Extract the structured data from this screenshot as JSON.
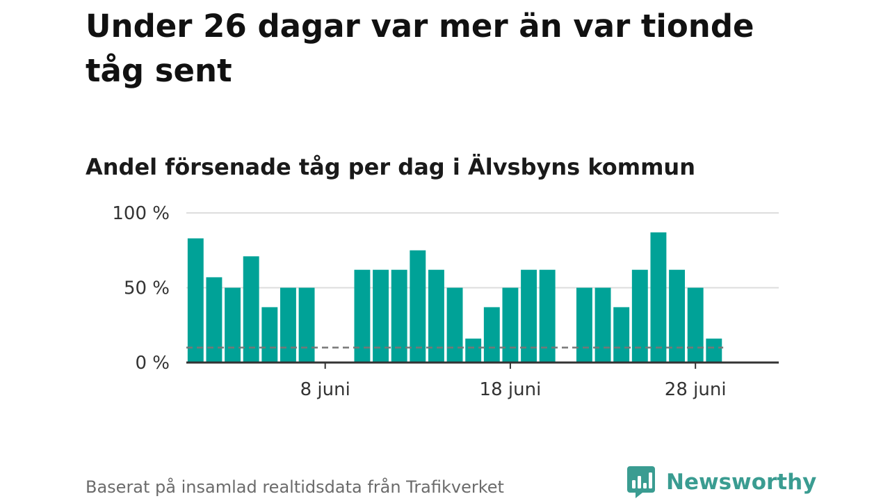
{
  "header": {
    "title": "Under 26 dagar var mer än var tionde tåg sent"
  },
  "footer": {
    "source": "Baserat på insamlad realtidsdata från Trafikverket"
  },
  "logo": {
    "name": "Newsworthy",
    "icon": "bar-chart-speech-bubble-icon"
  },
  "colors": {
    "bar": "#00a297",
    "reference_line": "#777777",
    "grid": "#dddddd",
    "axis": "#333333",
    "logo": "#3a9c91"
  },
  "chart_data": {
    "type": "bar",
    "title": "Under 26 dagar var mer än var tionde tåg sent",
    "subtitle": "Andel försenade tåg per dag i Älvsbyns kommun",
    "x_unit": "day of June",
    "x": [
      1,
      2,
      3,
      4,
      5,
      6,
      7,
      10,
      11,
      12,
      13,
      14,
      15,
      16,
      17,
      18,
      19,
      20,
      22,
      23,
      24,
      25,
      26,
      27,
      28,
      29
    ],
    "values": [
      83,
      57,
      50,
      71,
      37,
      50,
      50,
      62,
      62,
      62,
      75,
      62,
      50,
      16,
      37,
      50,
      62,
      62,
      50,
      50,
      37,
      62,
      87,
      62,
      50,
      16
    ],
    "xlim": [
      0.5,
      32.5
    ],
    "ylim": [
      0,
      100
    ],
    "y_ticks": [
      0,
      50,
      100
    ],
    "y_tick_labels": [
      "0 %",
      "50 %",
      "100 %"
    ],
    "x_ticks": [
      8,
      18,
      28
    ],
    "x_tick_labels": [
      "8 juni",
      "18 juni",
      "28 juni"
    ],
    "reference_line": 10,
    "grid": true,
    "xlabel": "",
    "ylabel": ""
  }
}
